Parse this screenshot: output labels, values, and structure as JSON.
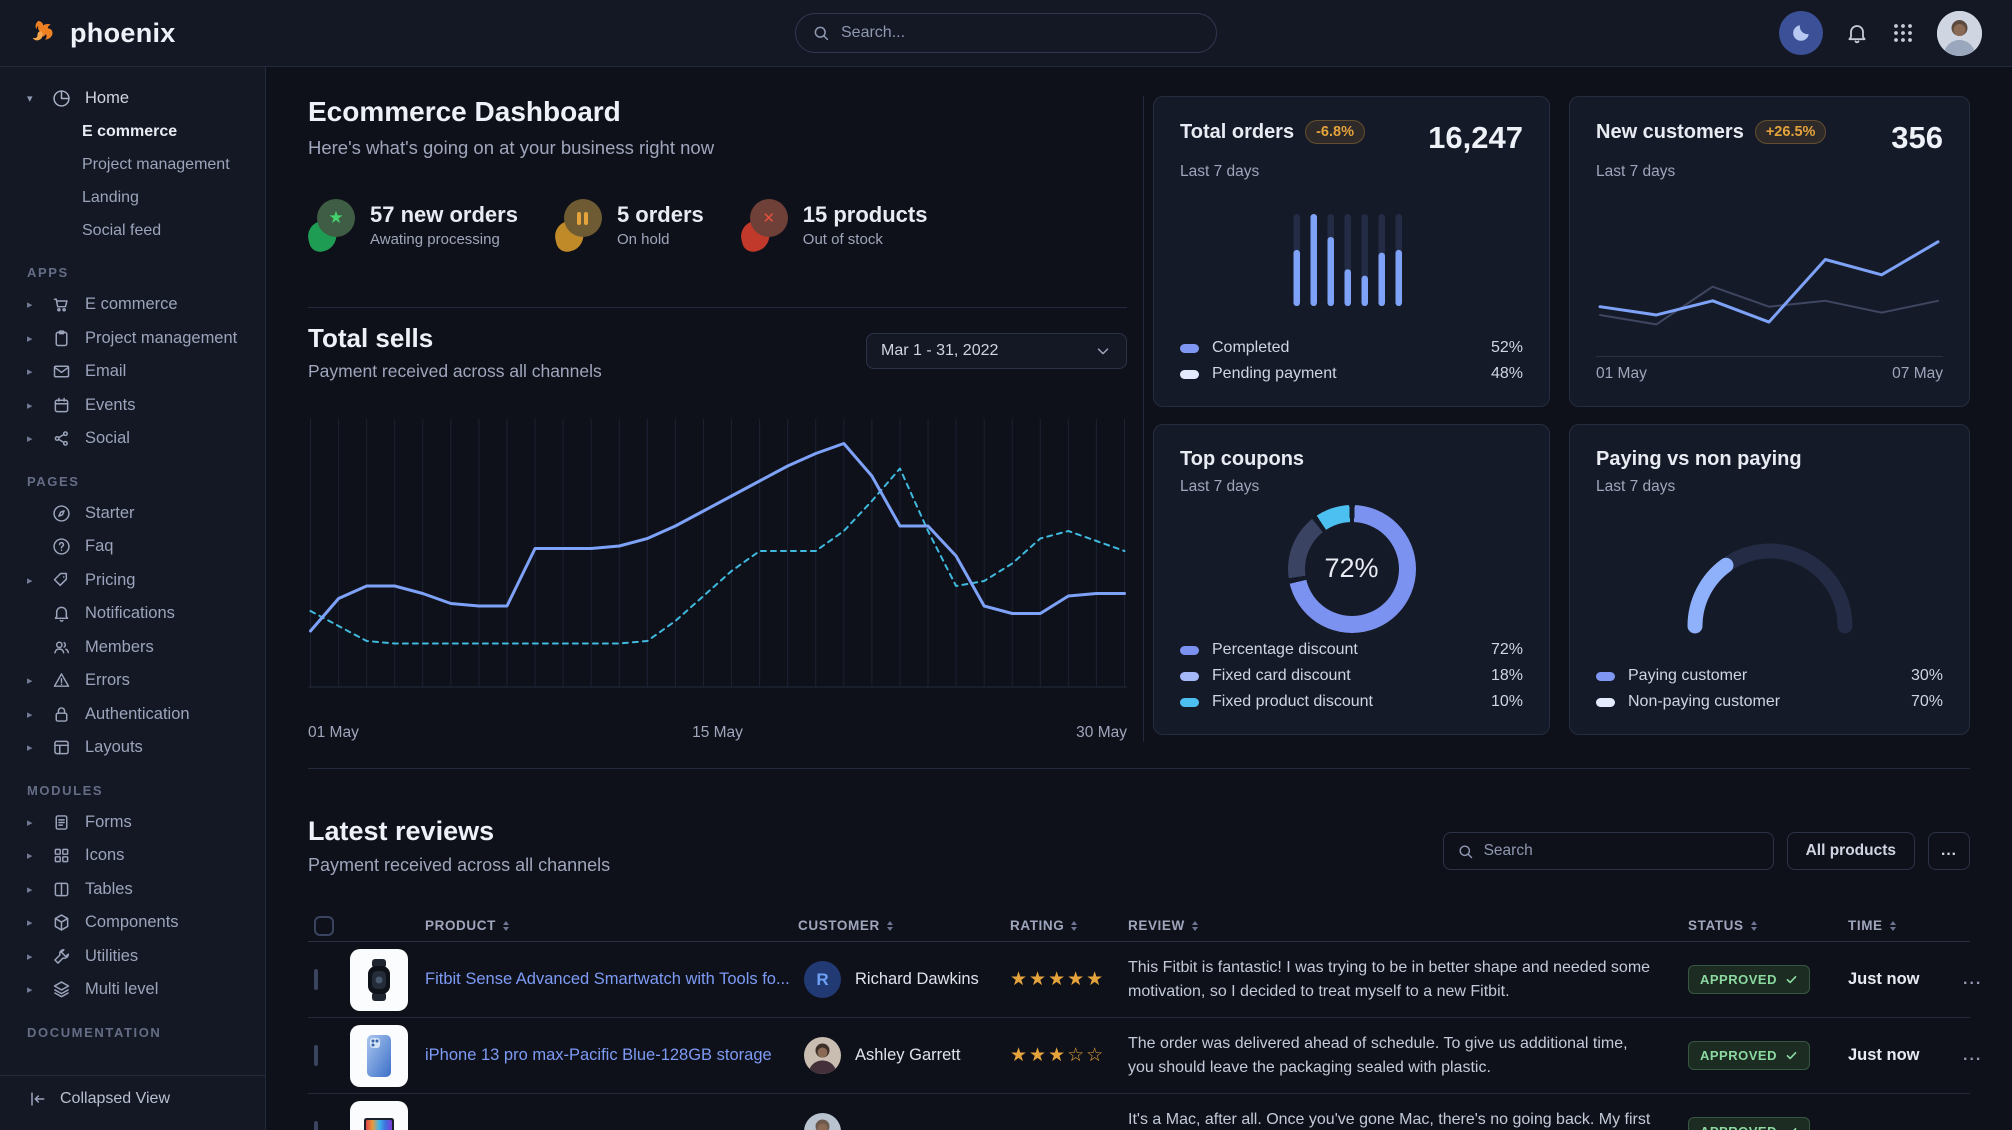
{
  "navbar": {
    "brand": "phoenix",
    "search_placeholder": "Search...",
    "brand_color": "#ef8123"
  },
  "sidebar": {
    "home": {
      "label": "Home",
      "icon": "pie-chart-icon",
      "children": [
        {
          "label": "E commerce",
          "active": true
        },
        {
          "label": "Project management",
          "active": false
        },
        {
          "label": "Landing",
          "active": false
        },
        {
          "label": "Social feed",
          "active": false
        }
      ]
    },
    "sections": [
      {
        "label": "APPS",
        "items": [
          {
            "label": "E commerce",
            "icon": "shopping-cart-icon",
            "caret": true
          },
          {
            "label": "Project management",
            "icon": "clipboard-icon",
            "caret": true
          },
          {
            "label": "Email",
            "icon": "mail-icon",
            "caret": true
          },
          {
            "label": "Events",
            "icon": "calendar-icon",
            "caret": true
          },
          {
            "label": "Social",
            "icon": "share-icon",
            "caret": true
          }
        ]
      },
      {
        "label": "PAGES",
        "items": [
          {
            "label": "Starter",
            "icon": "compass-icon",
            "caret": false
          },
          {
            "label": "Faq",
            "icon": "question-circle-icon",
            "caret": false
          },
          {
            "label": "Pricing",
            "icon": "tag-icon",
            "caret": true
          },
          {
            "label": "Notifications",
            "icon": "bell-icon",
            "caret": false
          },
          {
            "label": "Members",
            "icon": "users-icon",
            "caret": false
          },
          {
            "label": "Errors",
            "icon": "warning-triangle-icon",
            "caret": true
          },
          {
            "label": "Authentication",
            "icon": "lock-icon",
            "caret": true
          },
          {
            "label": "Layouts",
            "icon": "layout-icon",
            "caret": true
          }
        ]
      },
      {
        "label": "MODULES",
        "items": [
          {
            "label": "Forms",
            "icon": "file-text-icon",
            "caret": true
          },
          {
            "label": "Icons",
            "icon": "grid-icon",
            "caret": true
          },
          {
            "label": "Tables",
            "icon": "columns-icon",
            "caret": true
          },
          {
            "label": "Components",
            "icon": "cube-icon",
            "caret": true
          },
          {
            "label": "Utilities",
            "icon": "wrench-icon",
            "caret": true
          },
          {
            "label": "Multi level",
            "icon": "layers-icon",
            "caret": true
          }
        ]
      },
      {
        "label": "DOCUMENTATION",
        "items": []
      }
    ],
    "footer_label": "Collapsed View"
  },
  "header": {
    "title": "Ecommerce Dashboard",
    "subtitle": "Here's what's going on at your business right now"
  },
  "stats": [
    {
      "value_label": "57 new orders",
      "caption": "Awating processing",
      "kind": "success",
      "glyph": "star"
    },
    {
      "value_label": "5 orders",
      "caption": "On hold",
      "kind": "warning",
      "glyph": "pause"
    },
    {
      "value_label": "15 products",
      "caption": "Out of stock",
      "kind": "danger",
      "glyph": "x"
    }
  ],
  "total_sells": {
    "title": "Total sells",
    "subtitle": "Payment received across all channels",
    "date_range": "Mar 1 - 31, 2022",
    "x_labels": [
      "01 May",
      "15 May",
      "30 May"
    ]
  },
  "cards": {
    "total_orders": {
      "title": "Total orders",
      "badge": "-6.8%",
      "period": "Last 7 days",
      "value": "16,247",
      "legend": [
        {
          "label": "Completed",
          "value": "52%",
          "color": "#7f97f2"
        },
        {
          "label": "Pending payment",
          "value": "48%",
          "color": "#e4ebfd"
        }
      ]
    },
    "new_customers": {
      "title": "New customers",
      "badge": "+26.5%",
      "period": "Last 7 days",
      "value": "356",
      "x_labels": [
        "01 May",
        "07 May"
      ]
    },
    "top_coupons": {
      "title": "Top coupons",
      "period": "Last 7 days",
      "center_label": "72%",
      "legend": [
        {
          "label": "Percentage discount",
          "value": "72%",
          "color": "#7b92f0"
        },
        {
          "label": "Fixed card discount",
          "value": "18%",
          "color": "#a5b8f8"
        },
        {
          "label": "Fixed product discount",
          "value": "10%",
          "color": "#4cc0f0"
        }
      ]
    },
    "paying": {
      "title": "Paying vs non paying",
      "period": "Last 7 days",
      "legend": [
        {
          "label": "Paying customer",
          "value": "30%",
          "color": "#7f97f2"
        },
        {
          "label": "Non-paying customer",
          "value": "70%",
          "color": "#e4ebfd"
        }
      ]
    }
  },
  "chart_data": [
    {
      "id": "total-sells",
      "type": "line",
      "title": "Total sells",
      "x_labels": [
        "01 May",
        "15 May",
        "30 May"
      ],
      "ylim": [
        0,
        100
      ],
      "grid": "vertical-daily",
      "series": [
        {
          "name": "sells-current",
          "style": "solid",
          "color": "#7ea2f8",
          "values": [
            20,
            33,
            38,
            38,
            35,
            31,
            30,
            30,
            53,
            53,
            53,
            54,
            57,
            62,
            68,
            74,
            80,
            86,
            91,
            95,
            82,
            62,
            62,
            50,
            30,
            27,
            27,
            34,
            35,
            35
          ]
        },
        {
          "name": "sells-previous",
          "style": "dashed",
          "color": "#3fb9dd",
          "values": [
            28,
            22,
            16,
            15,
            15,
            15,
            15,
            15,
            15,
            15,
            15,
            15,
            16,
            24,
            34,
            44,
            52,
            52,
            52,
            60,
            72,
            85,
            60,
            38,
            40,
            47,
            57,
            60,
            56,
            52
          ]
        }
      ]
    },
    {
      "id": "total-orders-bars",
      "type": "bar",
      "ylim": [
        0,
        100
      ],
      "values": [
        61,
        100,
        75,
        40,
        33,
        58,
        61
      ],
      "bar_color": "#7ea2f8",
      "track_color": "#242c45",
      "legend_note": "Completed 52% / Pending payment 48%"
    },
    {
      "id": "new-customers-line",
      "type": "line",
      "x_labels": [
        "01 May",
        "07 May"
      ],
      "ylim": [
        0,
        100
      ],
      "series": [
        {
          "name": "new-customers",
          "color": "#7ea2f8",
          "values": [
            35,
            28,
            40,
            22,
            75,
            62,
            90
          ]
        },
        {
          "name": "previous-period",
          "color": "#3e4660",
          "values": [
            28,
            20,
            52,
            35,
            40,
            30,
            40
          ]
        }
      ]
    },
    {
      "id": "top-coupons-donut",
      "type": "pie",
      "center_label": "72%",
      "labels": [
        "Percentage discount",
        "Fixed card discount",
        "Fixed product discount"
      ],
      "values": [
        72,
        18,
        10
      ],
      "colors": [
        "#7b92f0",
        "#3a4361",
        "#4cc0f0"
      ]
    },
    {
      "id": "paying-gauge",
      "type": "gauge",
      "labels": [
        "Paying customer",
        "Non-paying customer"
      ],
      "values": [
        30,
        70
      ],
      "colors": [
        "#8fb0fa",
        "#242c45"
      ]
    }
  ],
  "reviews": {
    "title": "Latest reviews",
    "subtitle": "Payment received across all channels",
    "search_placeholder": "Search",
    "filter_label": "All products",
    "more_label": "...",
    "columns": [
      "PRODUCT",
      "CUSTOMER",
      "RATING",
      "REVIEW",
      "STATUS",
      "TIME"
    ],
    "rows": [
      {
        "product": "Fitbit Sense Advanced Smartwatch with Tools fo...",
        "thumb": "smartwatch",
        "customer": "Richard Dawkins",
        "avatar": {
          "type": "initial",
          "text": "R"
        },
        "rating": 5,
        "rating_max": 5,
        "review": "This Fitbit is fantastic! I was trying to be in better shape and needed some motivation, so I decided to treat myself to a new Fitbit.",
        "status": "APPROVED",
        "time": "Just now"
      },
      {
        "product": "iPhone 13 pro max-Pacific Blue-128GB storage",
        "thumb": "iphone",
        "customer": "Ashley Garrett",
        "avatar": {
          "type": "photo",
          "variant": "warm"
        },
        "rating": 3,
        "rating_max": 5,
        "review": "The order was delivered ahead of schedule. To give us additional time, you should leave the packaging sealed with plastic.",
        "status": "APPROVED",
        "time": "Just now"
      },
      {
        "product": "",
        "thumb": "macbook",
        "customer": "",
        "avatar": {
          "type": "photo",
          "variant": "cool"
        },
        "rating": null,
        "rating_max": 5,
        "review": "It's a Mac, after all. Once you've gone Mac, there's no going back. My first Mac lasted",
        "status": "APPROVED",
        "time": ""
      }
    ]
  }
}
